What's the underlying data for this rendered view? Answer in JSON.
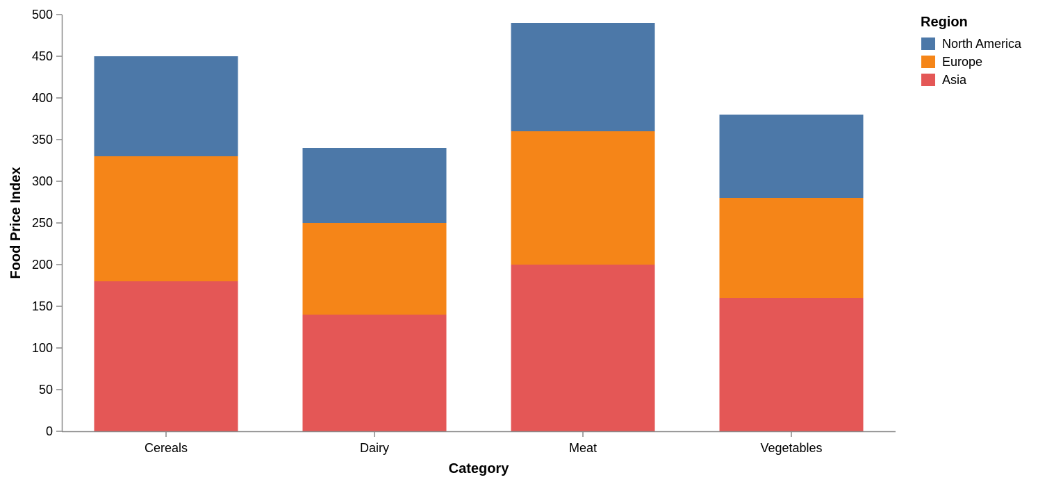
{
  "chart_data": {
    "type": "bar",
    "stacked": true,
    "categories": [
      "Cereals",
      "Dairy",
      "Meat",
      "Vegetables"
    ],
    "series": [
      {
        "name": "Asia",
        "color": "#e45756",
        "values": [
          180,
          140,
          200,
          160
        ]
      },
      {
        "name": "Europe",
        "color": "#f58518",
        "values": [
          150,
          110,
          160,
          120
        ]
      },
      {
        "name": "North America",
        "color": "#4c78a8",
        "values": [
          120,
          90,
          130,
          100
        ]
      }
    ],
    "xlabel": "Category",
    "ylabel": "Food Price Index",
    "ylim": [
      0,
      500
    ],
    "yticks": [
      "0",
      "50",
      "100",
      "150",
      "200",
      "250",
      "300",
      "350",
      "400",
      "450",
      "500"
    ],
    "grid": false,
    "legend": {
      "title": "Region",
      "placement": "right",
      "order": [
        "North America",
        "Europe",
        "Asia"
      ]
    }
  }
}
